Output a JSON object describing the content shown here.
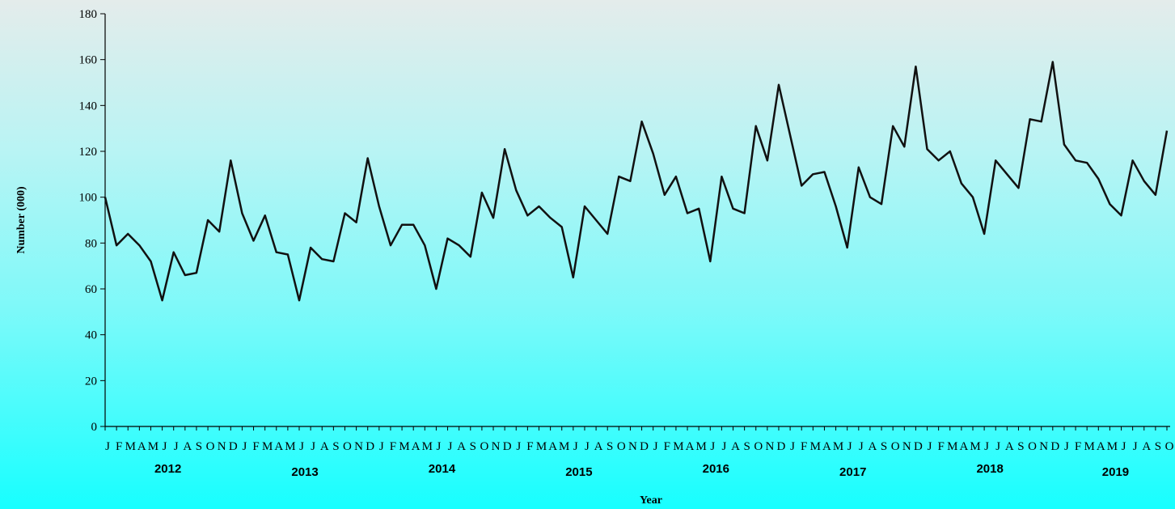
{
  "chart_data": {
    "type": "line",
    "y_label": "Number  (000)",
    "x_label": "Year",
    "categories": [
      "J",
      "F",
      "M",
      "A",
      "M",
      "J",
      "J",
      "A",
      "S",
      "O",
      "N",
      "D",
      "J",
      "F",
      "M",
      "A",
      "M",
      "J",
      "J",
      "A",
      "S",
      "O",
      "N",
      "D",
      "J",
      "F",
      "M",
      "A",
      "M",
      "J",
      "J",
      "A",
      "S",
      "O",
      "N",
      "D",
      "J",
      "F",
      "M",
      "A",
      "M",
      "J",
      "J",
      "A",
      "S",
      "O",
      "N",
      "D",
      "J",
      "F",
      "M",
      "A",
      "M",
      "J",
      "J",
      "A",
      "S",
      "O",
      "N",
      "D",
      "J",
      "F",
      "M",
      "A",
      "M",
      "J",
      "J",
      "A",
      "S",
      "O",
      "N",
      "D",
      "J",
      "F",
      "M",
      "A",
      "M",
      "J",
      "J",
      "A",
      "S",
      "O",
      "N",
      "D",
      "J",
      "F",
      "M",
      "A",
      "M",
      "J",
      "J",
      "A",
      "S",
      "O"
    ],
    "year_labels": [
      "2012",
      "2013",
      "2014",
      "2015",
      "2016",
      "2017",
      "2018",
      "2019"
    ],
    "series": [
      {
        "color": "#111111",
        "values": [
          100,
          79,
          84,
          79,
          72,
          55,
          76,
          66,
          67,
          90,
          85,
          116,
          93,
          81,
          92,
          76,
          75,
          55,
          78,
          73,
          72,
          93,
          89,
          117,
          96,
          79,
          88,
          88,
          79,
          60,
          82,
          79,
          74,
          102,
          91,
          121,
          103,
          92,
          96,
          91,
          87,
          65,
          96,
          90,
          84,
          109,
          107,
          133,
          119,
          101,
          109,
          93,
          95,
          72,
          109,
          95,
          93,
          131,
          116,
          149,
          127,
          105,
          110,
          111,
          96,
          78,
          113,
          100,
          97,
          131,
          122,
          157,
          121,
          116,
          120,
          106,
          100,
          84,
          116,
          110,
          104,
          134,
          133,
          159,
          123,
          116,
          115,
          108,
          97,
          92,
          116,
          107,
          101,
          129
        ]
      }
    ],
    "ylim": [
      0,
      180
    ],
    "yticks": [
      0,
      20,
      40,
      60,
      80,
      100,
      120,
      140,
      160,
      180
    ]
  }
}
